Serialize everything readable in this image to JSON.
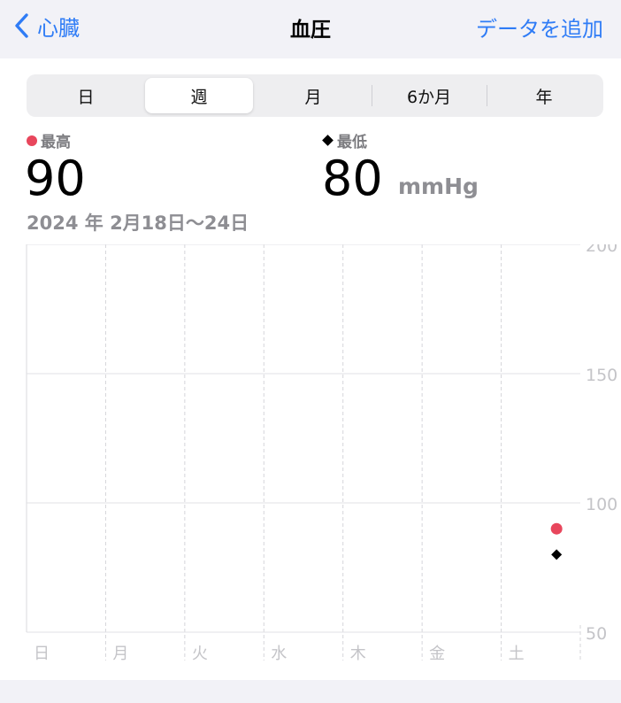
{
  "nav": {
    "back_label": "心臓",
    "title": "血圧",
    "add_label": "データを追加"
  },
  "segments": [
    {
      "label": "日",
      "active": false
    },
    {
      "label": "週",
      "active": true
    },
    {
      "label": "月",
      "active": false
    },
    {
      "label": "6か月",
      "active": false
    },
    {
      "label": "年",
      "active": false
    }
  ],
  "summary": {
    "systolic_label": "最高",
    "diastolic_label": "最低",
    "systolic_value": "90",
    "diastolic_value": "80",
    "unit": "mmHg",
    "date_range": "2024 年 2月18日〜24日"
  },
  "colors": {
    "accent": "#2f7cf6",
    "systolic": "#e8465c",
    "diastolic": "#000000"
  },
  "chart_data": {
    "type": "scatter",
    "categories": [
      "日",
      "月",
      "火",
      "水",
      "木",
      "金",
      "土"
    ],
    "y_ticks": [
      "200",
      "150",
      "100",
      "50"
    ],
    "ylim": [
      50,
      200
    ],
    "grid": true,
    "series": [
      {
        "name": "最高",
        "marker": "circle",
        "color": "#e8465c",
        "points": [
          {
            "x": "土",
            "y": 90
          }
        ]
      },
      {
        "name": "最低",
        "marker": "diamond",
        "color": "#000000",
        "points": [
          {
            "x": "土",
            "y": 80
          }
        ]
      }
    ]
  }
}
